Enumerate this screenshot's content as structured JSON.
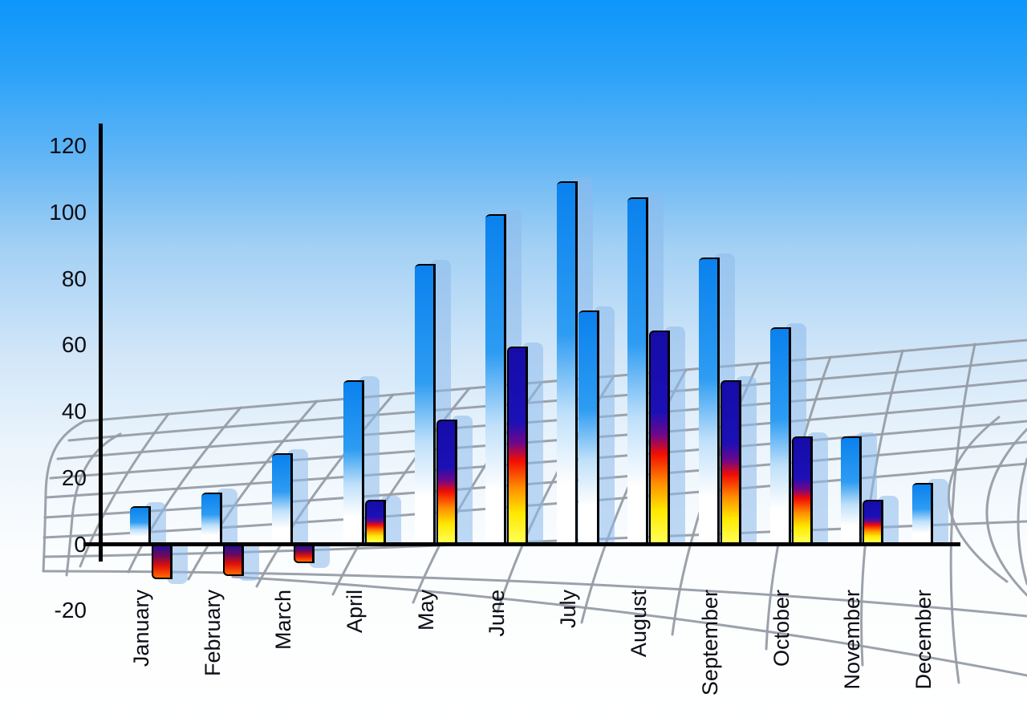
{
  "chart_data": {
    "type": "bar",
    "title": "",
    "xlabel": "",
    "ylabel": "",
    "categories": [
      "January",
      "February",
      "March",
      "April",
      "May",
      "June",
      "July",
      "August",
      "September",
      "October",
      "November",
      "December"
    ],
    "series": [
      {
        "name": "series-1-blue-gradient",
        "values": [
          11,
          15,
          27,
          49,
          84,
          99,
          109,
          104,
          86,
          65,
          32,
          18
        ]
      },
      {
        "name": "series-2-heat-gradient",
        "values": [
          -10,
          -9,
          -5,
          13,
          37,
          59,
          70,
          64,
          49,
          32,
          13,
          null
        ]
      }
    ],
    "second_bar_render_style": [
      "heat",
      "heat",
      "heat",
      "heat",
      "heat",
      "heat",
      "blue",
      "heat",
      "heat",
      "heat",
      "heat",
      null
    ],
    "ylim": [
      -20,
      120
    ],
    "yticks": [
      120,
      100,
      80,
      60,
      40,
      20,
      0,
      -20
    ],
    "tick_step": 20,
    "legend": "none",
    "grid": "decorative curved 3D mesh behind bars"
  },
  "colors": {
    "sky_top": "#0d96fb",
    "sky_mid": "#a3d0f4",
    "sky_low": "#ecf5fc",
    "bar_blue_top": "#0a81ee",
    "bar_blue_mid": "#2d9cf2",
    "heat_navy": "#150ca8",
    "heat_red": "#f20d02",
    "heat_orange": "#ff8f00",
    "heat_yellow": "#ffe800",
    "neg_navy": "#2a0e96",
    "neg_red": "#e01008",
    "neg_orange": "#ff6a00",
    "shadow_bar": "rgba(140,185,235,0.55)",
    "axis": "#000000",
    "mesh": "#979da6",
    "label_text": "#0d0d15"
  }
}
